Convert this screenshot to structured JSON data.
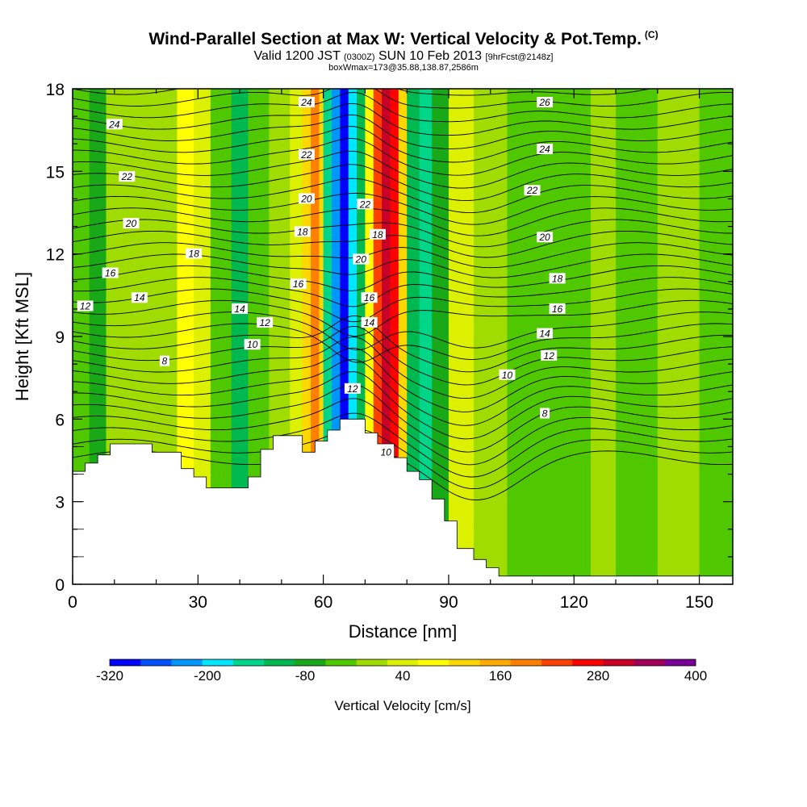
{
  "header": {
    "title": "Wind-Parallel Section at Max W: Vertical Velocity & Pot.Temp.",
    "title_tag": "(C)",
    "subtitle_a": "Valid 1200 JST",
    "subtitle_b": "(0300Z)",
    "subtitle_c": "SUN 10 Feb 2013",
    "subtitle_d": "[9hrFcst@2148z]",
    "subsubtitle": "boxWmax=173@35.88,138.87,2586m"
  },
  "chart_data": {
    "type": "heatmap",
    "xlabel": "Distance [nm]",
    "ylabel": "Height [Kft MSL]",
    "xlim": [
      0,
      158
    ],
    "ylim": [
      0,
      18
    ],
    "xticks": [
      0,
      30,
      60,
      90,
      120,
      150
    ],
    "yticks": [
      0,
      3,
      6,
      9,
      12,
      15,
      18
    ],
    "colorbar": {
      "title": "Vertical Velocity [cm/s]",
      "tick_labels": [
        "-320",
        "-200",
        "-80",
        "40",
        "160",
        "280",
        "400"
      ],
      "tick_values": [
        -320,
        -200,
        -80,
        40,
        160,
        280,
        400
      ],
      "range": [
        -320,
        400
      ],
      "colors": [
        "#0000ff",
        "#0050ff",
        "#0096ff",
        "#00e6ff",
        "#00d68a",
        "#00b850",
        "#18a818",
        "#50c800",
        "#a0dc00",
        "#dcf000",
        "#ffff00",
        "#ffd700",
        "#ffaa00",
        "#ff8000",
        "#ff4000",
        "#ff0000",
        "#c80028",
        "#a0005a",
        "#780096"
      ]
    },
    "terrain_kft": [
      [
        0,
        4.1
      ],
      [
        3,
        4.1
      ],
      [
        3,
        4.4
      ],
      [
        6,
        4.4
      ],
      [
        6,
        4.7
      ],
      [
        9,
        4.7
      ],
      [
        9,
        5.1
      ],
      [
        19,
        5.1
      ],
      [
        19,
        4.8
      ],
      [
        26,
        4.8
      ],
      [
        26,
        4.2
      ],
      [
        29,
        4.2
      ],
      [
        29,
        3.9
      ],
      [
        32,
        3.9
      ],
      [
        32,
        3.5
      ],
      [
        42,
        3.5
      ],
      [
        42,
        3.9
      ],
      [
        45,
        3.9
      ],
      [
        45,
        4.9
      ],
      [
        48,
        4.9
      ],
      [
        48,
        5.4
      ],
      [
        55,
        5.4
      ],
      [
        55,
        4.8
      ],
      [
        58,
        4.8
      ],
      [
        58,
        5.2
      ],
      [
        61,
        5.2
      ],
      [
        61,
        5.6
      ],
      [
        64,
        5.6
      ],
      [
        64,
        6.0
      ],
      [
        70,
        6.0
      ],
      [
        70,
        5.5
      ],
      [
        73,
        5.5
      ],
      [
        73,
        5.1
      ],
      [
        77,
        5.1
      ],
      [
        77,
        4.6
      ],
      [
        80,
        4.6
      ],
      [
        80,
        4.1
      ],
      [
        83,
        4.1
      ],
      [
        83,
        3.8
      ],
      [
        86,
        3.8
      ],
      [
        86,
        3.1
      ],
      [
        89,
        3.1
      ],
      [
        89,
        2.3
      ],
      [
        92,
        2.3
      ],
      [
        92,
        1.3
      ],
      [
        96,
        1.3
      ],
      [
        96,
        0.9
      ],
      [
        99,
        0.9
      ],
      [
        99,
        0.6
      ],
      [
        102,
        0.6
      ],
      [
        102,
        0.3
      ],
      [
        158,
        0.3
      ]
    ],
    "velocity_bands": [
      {
        "x0": 0,
        "x1": 4,
        "w": -40
      },
      {
        "x0": 4,
        "x1": 8,
        "w": -80
      },
      {
        "x0": 8,
        "x1": 18,
        "w": 0
      },
      {
        "x0": 18,
        "x1": 25,
        "w": 20
      },
      {
        "x0": 25,
        "x1": 29,
        "w": 60
      },
      {
        "x0": 29,
        "x1": 33,
        "w": 40
      },
      {
        "x0": 33,
        "x1": 38,
        "w": -40
      },
      {
        "x0": 38,
        "x1": 42,
        "w": -100
      },
      {
        "x0": 42,
        "x1": 47,
        "w": -20
      },
      {
        "x0": 47,
        "x1": 52,
        "w": 0
      },
      {
        "x0": 52,
        "x1": 55,
        "w": 40
      },
      {
        "x0": 55,
        "x1": 57,
        "w": 120
      },
      {
        "x0": 57,
        "x1": 59,
        "w": 180
      },
      {
        "x0": 59,
        "x1": 60,
        "w": 120
      },
      {
        "x0": 60,
        "x1": 62,
        "w": -140
      },
      {
        "x0": 62,
        "x1": 64,
        "w": -240
      },
      {
        "x0": 64,
        "x1": 66,
        "w": -300
      },
      {
        "x0": 66,
        "x1": 68,
        "w": -200
      },
      {
        "x0": 68,
        "x1": 70,
        "w": -120
      },
      {
        "x0": 70,
        "x1": 72,
        "w": 80
      },
      {
        "x0": 72,
        "x1": 74,
        "w": 220
      },
      {
        "x0": 74,
        "x1": 76,
        "w": 320
      },
      {
        "x0": 76,
        "x1": 78,
        "w": 260
      },
      {
        "x0": 78,
        "x1": 80,
        "w": 120
      },
      {
        "x0": 80,
        "x1": 83,
        "w": -100
      },
      {
        "x0": 83,
        "x1": 86,
        "w": -140
      },
      {
        "x0": 86,
        "x1": 90,
        "w": -60
      },
      {
        "x0": 90,
        "x1": 96,
        "w": 40
      },
      {
        "x0": 96,
        "x1": 104,
        "w": 0
      },
      {
        "x0": 104,
        "x1": 114,
        "w": -20
      },
      {
        "x0": 114,
        "x1": 124,
        "w": -40
      },
      {
        "x0": 124,
        "x1": 130,
        "w": 0
      },
      {
        "x0": 130,
        "x1": 140,
        "w": -20
      },
      {
        "x0": 140,
        "x1": 150,
        "w": 0
      },
      {
        "x0": 150,
        "x1": 158,
        "w": -20
      }
    ],
    "contour_labels": [
      {
        "text": "24",
        "x": 10,
        "y": 16.7
      },
      {
        "text": "22",
        "x": 13,
        "y": 14.8
      },
      {
        "text": "20",
        "x": 14,
        "y": 13.1
      },
      {
        "text": "18",
        "x": 29,
        "y": 12.0
      },
      {
        "text": "16",
        "x": 9,
        "y": 11.3
      },
      {
        "text": "14",
        "x": 16,
        "y": 10.4
      },
      {
        "text": "12",
        "x": 3,
        "y": 10.1
      },
      {
        "text": "8",
        "x": 22,
        "y": 8.1
      },
      {
        "text": "14",
        "x": 40,
        "y": 10.0
      },
      {
        "text": "12",
        "x": 46,
        "y": 9.5
      },
      {
        "text": "10",
        "x": 43,
        "y": 8.7
      },
      {
        "text": "24",
        "x": 56,
        "y": 17.5
      },
      {
        "text": "22",
        "x": 56,
        "y": 15.6
      },
      {
        "text": "20",
        "x": 56,
        "y": 14.0
      },
      {
        "text": "18",
        "x": 55,
        "y": 12.8
      },
      {
        "text": "16",
        "x": 54,
        "y": 10.9
      },
      {
        "text": "22",
        "x": 70,
        "y": 13.8
      },
      {
        "text": "18",
        "x": 73,
        "y": 12.7
      },
      {
        "text": "20",
        "x": 69,
        "y": 11.8
      },
      {
        "text": "16",
        "x": 71,
        "y": 10.4
      },
      {
        "text": "14",
        "x": 71,
        "y": 9.5
      },
      {
        "text": "12",
        "x": 67,
        "y": 7.1
      },
      {
        "text": "10",
        "x": 75,
        "y": 4.8
      },
      {
        "text": "26",
        "x": 113,
        "y": 17.5
      },
      {
        "text": "24",
        "x": 113,
        "y": 15.8
      },
      {
        "text": "22",
        "x": 110,
        "y": 14.3
      },
      {
        "text": "20",
        "x": 113,
        "y": 12.6
      },
      {
        "text": "18",
        "x": 116,
        "y": 11.1
      },
      {
        "text": "16",
        "x": 116,
        "y": 10.0
      },
      {
        "text": "14",
        "x": 113,
        "y": 9.1
      },
      {
        "text": "12",
        "x": 114,
        "y": 8.3
      },
      {
        "text": "10",
        "x": 104,
        "y": 7.6
      },
      {
        "text": "8",
        "x": 113,
        "y": 6.2
      }
    ]
  }
}
